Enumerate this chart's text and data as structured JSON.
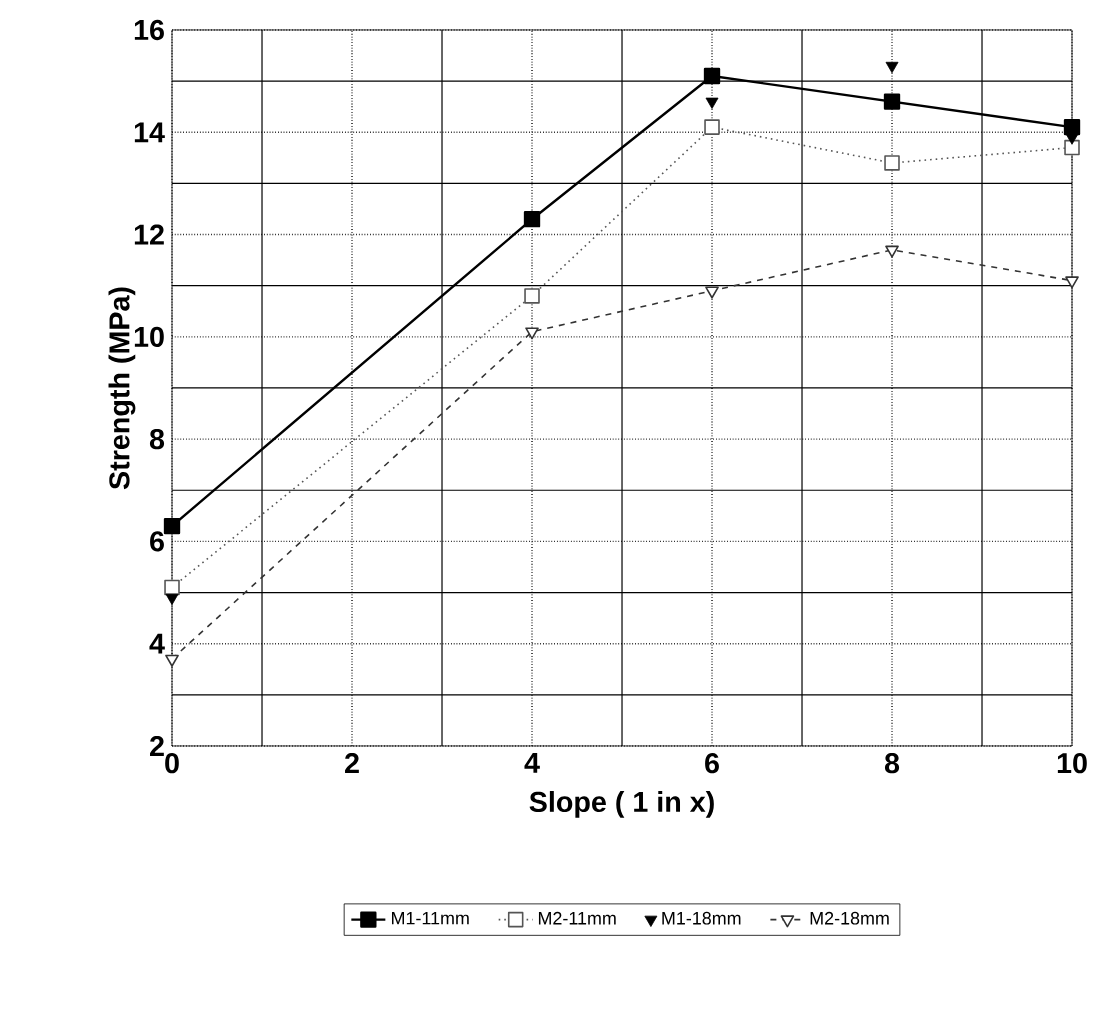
{
  "chart_data": {
    "type": "line",
    "xlabel": "Slope ( 1 in x)",
    "ylabel": "Strength (MPa)",
    "xlim": [
      0,
      10
    ],
    "ylim": [
      2,
      16
    ],
    "xticks": [
      0,
      2,
      4,
      6,
      8,
      10
    ],
    "yticks": [
      2,
      4,
      6,
      8,
      10,
      12,
      14,
      16
    ],
    "grid": true,
    "legend": "bottom",
    "series": [
      {
        "name": "M1-11mm",
        "color": "#000000",
        "x": [
          0,
          4,
          6,
          8,
          10
        ],
        "values": [
          6.3,
          12.3,
          15.1,
          14.6,
          14.1
        ],
        "marker": "square",
        "line_style": "solid"
      },
      {
        "name": "M2-11mm",
        "color": "#555555",
        "x": [
          0,
          4,
          6,
          8,
          10
        ],
        "values": [
          5.1,
          10.8,
          14.1,
          13.4,
          13.7
        ],
        "marker": "square open",
        "line_style": "dotted"
      },
      {
        "name": "M1-18mm",
        "color": "#000000",
        "x": [
          0,
          6,
          8,
          10
        ],
        "values": [
          4.9,
          14.6,
          15.3,
          13.9
        ],
        "marker": "triangle",
        "type": "scatter"
      },
      {
        "name": "M2-18mm",
        "color": "#333333",
        "x": [
          0,
          4,
          6,
          8,
          10
        ],
        "values": [
          3.7,
          10.1,
          10.9,
          11.7,
          11.1
        ],
        "marker": "triangle open",
        "line_style": "dashed"
      }
    ]
  }
}
